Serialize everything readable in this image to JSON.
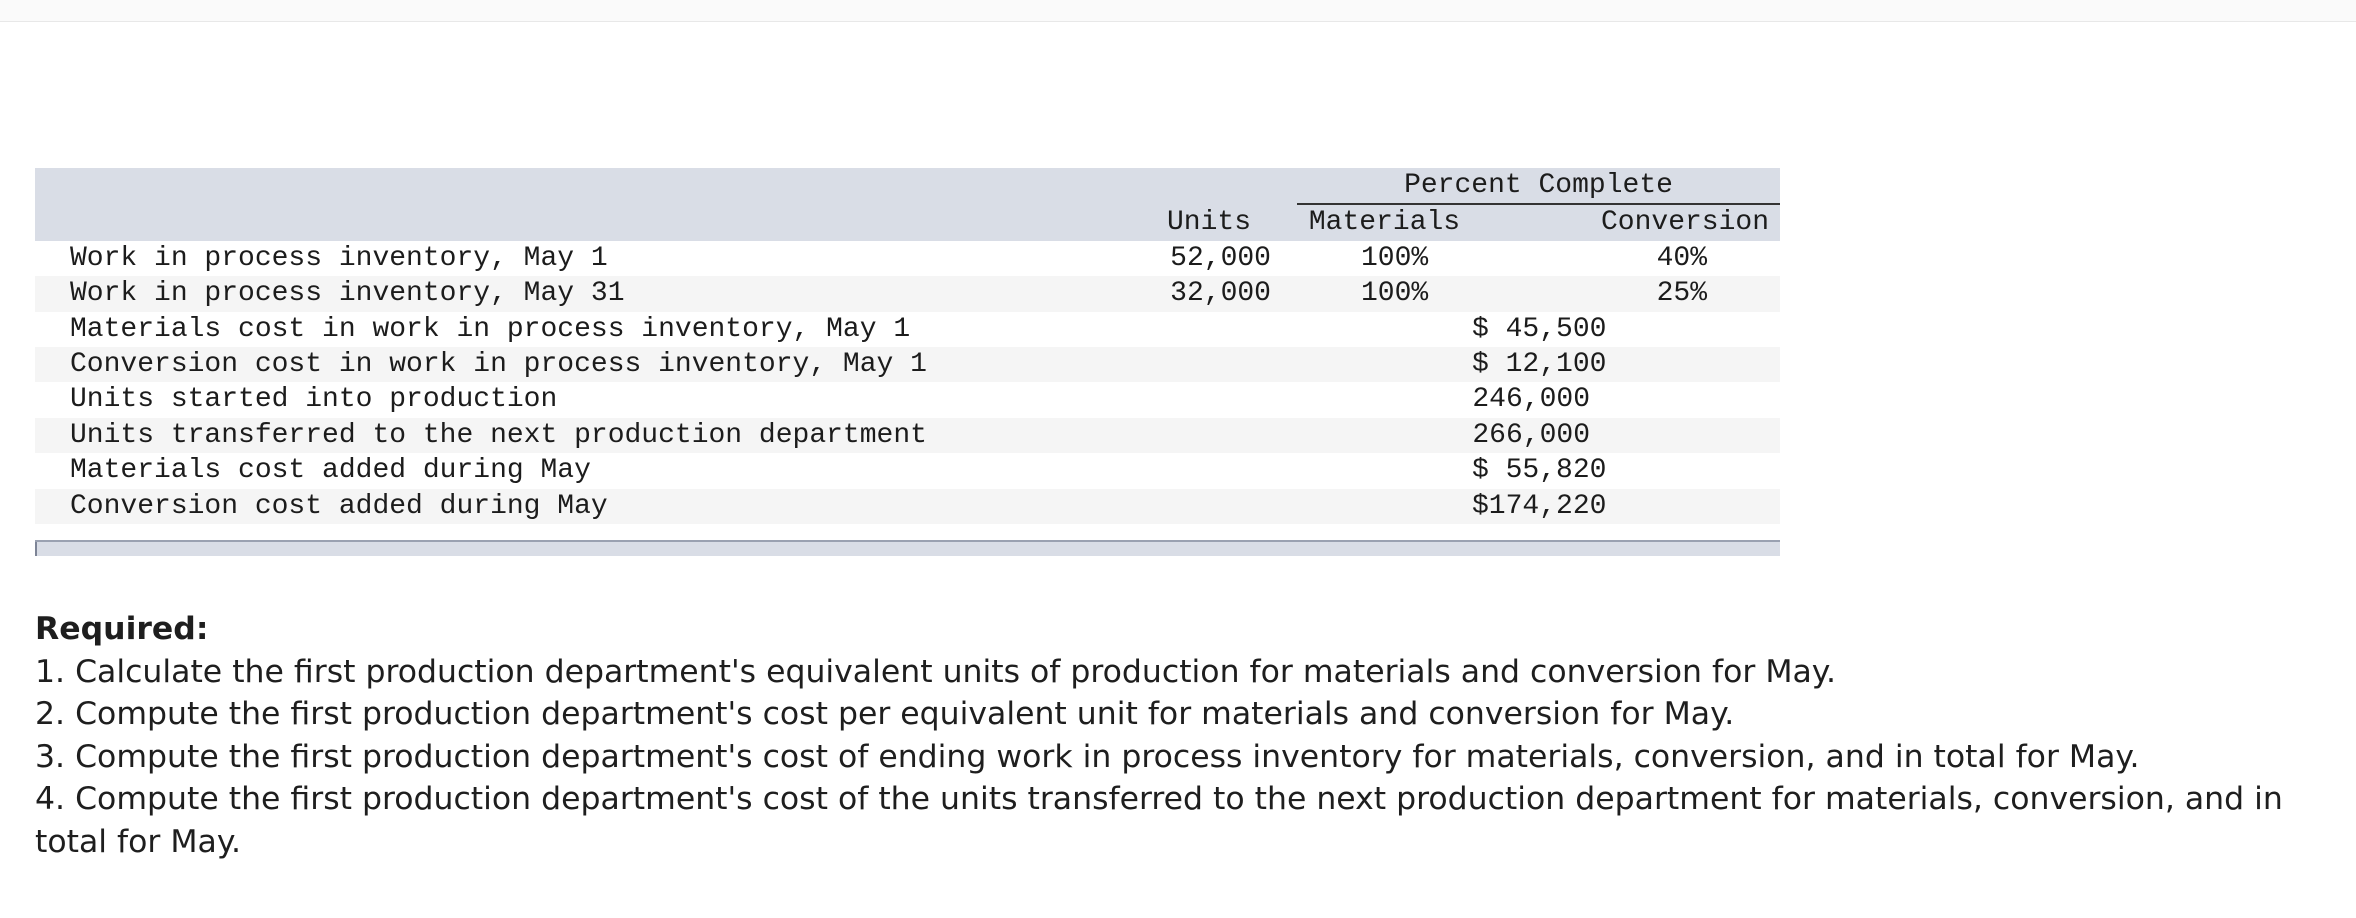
{
  "table": {
    "header": {
      "percent_complete": "Percent Complete",
      "units": "Units",
      "materials": "Materials",
      "conversion": "Conversion"
    },
    "percent_rows": [
      {
        "label": "Work in process inventory, May 1",
        "units": "52,000",
        "materials": "100%",
        "conversion": "40%"
      },
      {
        "label": "Work in process inventory, May 31",
        "units": "32,000",
        "materials": "100%",
        "conversion": "25%"
      }
    ],
    "value_rows": [
      {
        "label": "Materials cost in work in process inventory, May 1",
        "value": "$ 45,500"
      },
      {
        "label": "Conversion cost in work in process inventory, May 1",
        "value": "$ 12,100"
      },
      {
        "label": "Units started into production",
        "value": "246,000"
      },
      {
        "label": "Units transferred to the next production department",
        "value": "266,000"
      },
      {
        "label": "Materials cost added during May",
        "value": "$ 55,820"
      },
      {
        "label": "Conversion cost added during May",
        "value": "$174,220"
      }
    ]
  },
  "required": {
    "title": "Required:",
    "items": [
      "1. Calculate the first production department's equivalent units of production for materials and conversion for May.",
      "2. Compute the first production department's cost per equivalent unit for materials and conversion for May.",
      "3. Compute the first production department's cost of ending work in process inventory for materials, conversion, and in total for May.",
      "4. Compute the first production department's cost of the units transferred to the next production department for materials, conversion, and in total for May."
    ]
  }
}
